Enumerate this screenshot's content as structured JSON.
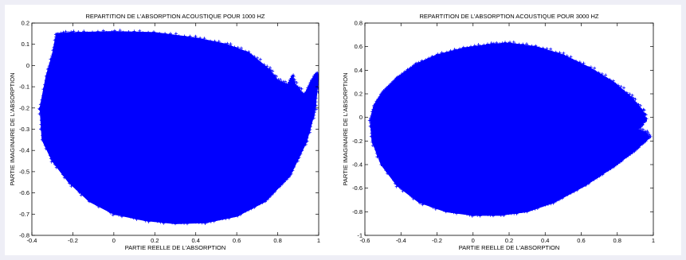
{
  "chart_data": [
    {
      "type": "scatter",
      "title": "REPARTITION DE L'ABSORPTION ACOUSTIQUE POUR 1000 HZ",
      "xlabel": "PARTIE REELLE DE L'ABSORPTION",
      "ylabel": "PARTIE IMAGINAIRE DE L'ABSORPTION",
      "xlim": [
        -0.4,
        1.0
      ],
      "ylim": [
        -0.8,
        0.2
      ],
      "xticks": [
        -0.4,
        -0.2,
        0,
        0.2,
        0.4,
        0.6,
        0.8,
        1
      ],
      "yticks": [
        -0.8,
        -0.7,
        -0.6,
        -0.5,
        -0.4,
        -0.3,
        -0.2,
        -0.1,
        0,
        0.1,
        0.2
      ],
      "grid": false,
      "marker": "+",
      "color": "#0000ff",
      "region_outline": [
        [
          -0.36,
          -0.2
        ],
        [
          -0.33,
          -0.05
        ],
        [
          -0.3,
          0.05
        ],
        [
          -0.28,
          0.15
        ],
        [
          -0.2,
          0.155
        ],
        [
          0,
          0.16
        ],
        [
          0.2,
          0.155
        ],
        [
          0.4,
          0.13
        ],
        [
          0.55,
          0.1
        ],
        [
          0.66,
          0.06
        ],
        [
          0.76,
          -0.02
        ],
        [
          0.8,
          -0.07
        ],
        [
          0.85,
          -0.09
        ],
        [
          0.87,
          -0.05
        ],
        [
          0.88,
          -0.08
        ],
        [
          0.93,
          -0.14
        ],
        [
          0.96,
          -0.08
        ],
        [
          0.985,
          -0.04
        ],
        [
          1.0,
          -0.05
        ],
        [
          0.98,
          -0.22
        ],
        [
          0.94,
          -0.36
        ],
        [
          0.86,
          -0.52
        ],
        [
          0.74,
          -0.64
        ],
        [
          0.6,
          -0.71
        ],
        [
          0.45,
          -0.74
        ],
        [
          0.3,
          -0.745
        ],
        [
          0.15,
          -0.73
        ],
        [
          0,
          -0.7
        ],
        [
          -0.12,
          -0.64
        ],
        [
          -0.22,
          -0.55
        ],
        [
          -0.3,
          -0.45
        ],
        [
          -0.35,
          -0.35
        ]
      ]
    },
    {
      "type": "scatter",
      "title": "REPARTITION DE L'ABSORPTION ACOUSTIQUE POUR 3000 HZ",
      "xlabel": "PARTIE REELLE DE L'ABSORPTION",
      "ylabel": "PARTIE IMAGINAIRE DE L'ABSORPTION",
      "xlim": [
        -0.6,
        1.0
      ],
      "ylim": [
        -1.0,
        0.8
      ],
      "xticks": [
        -0.6,
        -0.4,
        -0.2,
        0,
        0.2,
        0.4,
        0.6,
        0.8,
        1
      ],
      "yticks": [
        -1,
        -0.8,
        -0.6,
        -0.4,
        -0.2,
        0,
        0.2,
        0.4,
        0.6,
        0.8
      ],
      "grid": false,
      "marker": "+",
      "color": "#0000ff",
      "region_outline": [
        [
          -0.57,
          -0.02
        ],
        [
          -0.55,
          0.1
        ],
        [
          -0.5,
          0.22
        ],
        [
          -0.42,
          0.34
        ],
        [
          -0.32,
          0.45
        ],
        [
          -0.2,
          0.53
        ],
        [
          -0.05,
          0.59
        ],
        [
          0.1,
          0.62
        ],
        [
          0.2,
          0.63
        ],
        [
          0.35,
          0.6
        ],
        [
          0.5,
          0.53
        ],
        [
          0.65,
          0.42
        ],
        [
          0.78,
          0.3
        ],
        [
          0.88,
          0.17
        ],
        [
          0.94,
          0.06
        ],
        [
          0.96,
          -0.02
        ],
        [
          0.93,
          -0.08
        ],
        [
          0.88,
          -0.14
        ],
        [
          0.91,
          -0.1
        ],
        [
          0.96,
          -0.13
        ],
        [
          0.98,
          -0.17
        ],
        [
          0.9,
          -0.28
        ],
        [
          0.78,
          -0.42
        ],
        [
          0.62,
          -0.58
        ],
        [
          0.45,
          -0.72
        ],
        [
          0.3,
          -0.8
        ],
        [
          0.15,
          -0.83
        ],
        [
          0,
          -0.83
        ],
        [
          -0.15,
          -0.8
        ],
        [
          -0.3,
          -0.72
        ],
        [
          -0.42,
          -0.58
        ],
        [
          -0.51,
          -0.4
        ],
        [
          -0.56,
          -0.2
        ]
      ]
    }
  ]
}
